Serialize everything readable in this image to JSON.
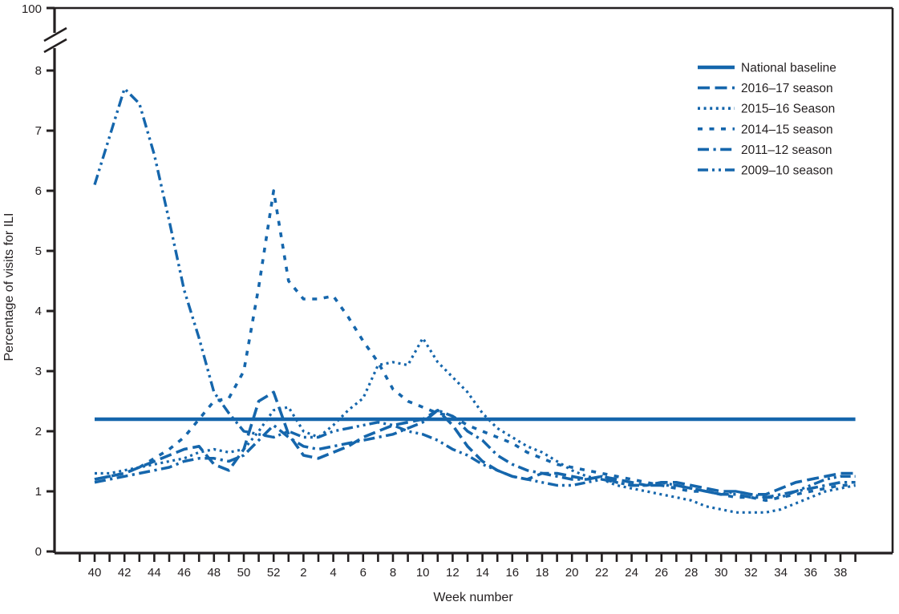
{
  "chart_data": {
    "type": "line",
    "title": "",
    "xlabel": "Week number",
    "ylabel": "Percentage of visits for ILI",
    "x_unit": "surveillance week",
    "weeks": [
      40,
      41,
      42,
      43,
      44,
      45,
      46,
      47,
      48,
      49,
      50,
      51,
      52,
      1,
      2,
      3,
      4,
      5,
      6,
      7,
      8,
      9,
      10,
      11,
      12,
      13,
      14,
      15,
      16,
      17,
      18,
      19,
      20,
      21,
      22,
      23,
      24,
      25,
      26,
      27,
      28,
      29,
      30,
      31,
      32,
      33,
      34,
      35,
      36,
      37,
      38,
      39
    ],
    "x_tick_labels": [
      "40",
      "42",
      "44",
      "46",
      "48",
      "50",
      "52",
      "2",
      "4",
      "6",
      "8",
      "10",
      "12",
      "14",
      "16",
      "18",
      "20",
      "22",
      "24",
      "26",
      "28",
      "30",
      "32",
      "34",
      "36",
      "38"
    ],
    "y_ticks": [
      "0",
      "1",
      "2",
      "3",
      "4",
      "5",
      "6",
      "7",
      "8"
    ],
    "y_axis_break": true,
    "y_axis_top_label": "100",
    "ylim": [
      0,
      8
    ],
    "grid": false,
    "legend_position": "top-right",
    "line_color": "#1566ac",
    "axis_color": "#231f20",
    "national_baseline_value": 2.2,
    "series": [
      {
        "name": "National baseline",
        "style": "solid",
        "constant": 2.2,
        "values": [
          2.2,
          2.2,
          2.2,
          2.2,
          2.2,
          2.2,
          2.2,
          2.2,
          2.2,
          2.2,
          2.2,
          2.2,
          2.2,
          2.2,
          2.2,
          2.2,
          2.2,
          2.2,
          2.2,
          2.2,
          2.2,
          2.2,
          2.2,
          2.2,
          2.2,
          2.2,
          2.2,
          2.2,
          2.2,
          2.2,
          2.2,
          2.2,
          2.2,
          2.2,
          2.2,
          2.2,
          2.2,
          2.2,
          2.2,
          2.2,
          2.2,
          2.2,
          2.2,
          2.2,
          2.2,
          2.2,
          2.2,
          2.2,
          2.2,
          2.2,
          2.2,
          2.2
        ]
      },
      {
        "name": "2016–17 season",
        "style": "dash",
        "values": [
          1.2,
          1.25,
          1.3,
          1.4,
          1.5,
          1.6,
          1.7,
          1.75,
          1.45,
          1.35,
          1.7,
          2.5,
          2.65,
          1.95,
          1.6,
          1.55,
          1.65,
          1.75,
          1.9,
          2.0,
          2.1,
          2.15,
          2.2,
          2.35,
          2.1,
          1.75,
          1.5,
          1.35,
          1.25,
          1.2,
          1.3,
          1.3,
          1.25,
          1.2,
          1.25,
          1.2,
          1.15,
          1.1,
          1.15,
          1.15,
          1.1,
          1.05,
          1.0,
          1.0,
          0.95,
          0.95,
          1.05,
          1.15,
          1.2,
          1.25,
          1.3,
          1.3
        ]
      },
      {
        "name": "2015–16 Season",
        "style": "dot",
        "values": [
          1.3,
          1.3,
          1.35,
          1.4,
          1.45,
          1.5,
          1.55,
          1.65,
          1.7,
          1.65,
          1.7,
          2.0,
          2.35,
          2.4,
          2.0,
          1.9,
          2.1,
          2.35,
          2.55,
          3.1,
          3.15,
          3.1,
          3.55,
          3.15,
          2.9,
          2.65,
          2.3,
          2.05,
          1.9,
          1.75,
          1.65,
          1.5,
          1.35,
          1.25,
          1.2,
          1.1,
          1.05,
          1.0,
          0.95,
          0.9,
          0.85,
          0.75,
          0.7,
          0.65,
          0.65,
          0.65,
          0.7,
          0.8,
          0.9,
          1.0,
          1.05,
          1.1
        ]
      },
      {
        "name": "2014–15 season",
        "style": "spaced-dash",
        "values": [
          1.2,
          1.25,
          1.3,
          1.4,
          1.55,
          1.7,
          1.9,
          2.2,
          2.5,
          2.55,
          3.0,
          4.4,
          6.0,
          4.5,
          4.2,
          4.2,
          4.25,
          3.9,
          3.5,
          3.15,
          2.7,
          2.5,
          2.4,
          2.3,
          2.25,
          2.1,
          2.0,
          1.9,
          1.8,
          1.65,
          1.55,
          1.45,
          1.4,
          1.35,
          1.3,
          1.25,
          1.2,
          1.15,
          1.1,
          1.05,
          1.0,
          1.0,
          0.95,
          0.9,
          0.9,
          0.85,
          0.9,
          0.95,
          1.0,
          1.05,
          1.1,
          1.1
        ]
      },
      {
        "name": "2011–12 season",
        "style": "dash-dot",
        "values": [
          1.15,
          1.2,
          1.25,
          1.3,
          1.35,
          1.4,
          1.5,
          1.55,
          1.55,
          1.5,
          1.6,
          1.85,
          2.1,
          1.9,
          1.75,
          1.7,
          1.75,
          1.8,
          1.85,
          1.9,
          1.95,
          2.05,
          2.15,
          2.35,
          2.25,
          2.0,
          1.85,
          1.6,
          1.45,
          1.35,
          1.3,
          1.25,
          1.2,
          1.2,
          1.25,
          1.15,
          1.1,
          1.1,
          1.1,
          1.1,
          1.05,
          1.0,
          0.95,
          0.95,
          0.9,
          0.9,
          0.95,
          1.0,
          1.05,
          1.1,
          1.15,
          1.15
        ]
      },
      {
        "name": "2009–10 season",
        "style": "dash-dot-dot",
        "values": [
          6.1,
          6.9,
          7.7,
          7.45,
          6.6,
          5.5,
          4.35,
          3.55,
          2.65,
          2.3,
          2.0,
          1.95,
          1.9,
          2.0,
          1.9,
          1.9,
          2.0,
          2.05,
          2.1,
          2.15,
          2.1,
          2.0,
          1.95,
          1.85,
          1.7,
          1.6,
          1.45,
          1.35,
          1.25,
          1.2,
          1.15,
          1.1,
          1.1,
          1.15,
          1.2,
          1.15,
          1.1,
          1.1,
          1.15,
          1.1,
          1.05,
          1.0,
          0.95,
          1.0,
          0.95,
          0.9,
          0.9,
          1.0,
          1.1,
          1.2,
          1.25,
          1.25
        ]
      }
    ]
  }
}
